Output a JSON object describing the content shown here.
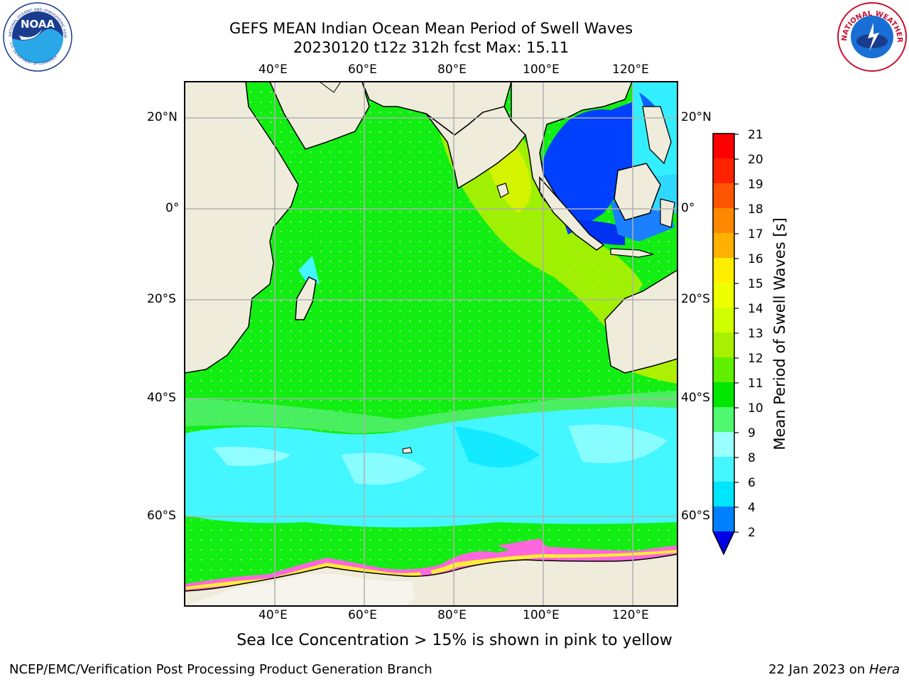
{
  "title": {
    "line1": "GEFS MEAN Indian Ocean Mean Period of Swell Waves",
    "line2": "20230120 t12z 312h fcst   Max: 15.11"
  },
  "logos": {
    "left": {
      "icon": "noaa-logo",
      "arc_text": "NATIONAL OCEANIC AND ATMOSPHERIC ADMINISTRATION",
      "bottom_text": "U.S. DEPARTMENT OF COMMERCE",
      "center_text": "NOAA"
    },
    "right": {
      "icon": "nws-logo",
      "arc_text": "NATIONAL WEATHER SERVICE"
    }
  },
  "map": {
    "lon_labels": [
      "40°E",
      "60°E",
      "80°E",
      "100°E",
      "120°E"
    ],
    "lat_labels": [
      "20°N",
      "0°",
      "20°S",
      "40°S",
      "60°S"
    ],
    "colors": {
      "land": "#efecdc",
      "grid": "#b0b0b0",
      "coast": "#000000"
    }
  },
  "colorbar": {
    "label": "Mean Period of Swell Waves [s]",
    "ticks": [
      "2",
      "4",
      "6",
      "8",
      "9",
      "10",
      "11",
      "12",
      "13",
      "14",
      "15",
      "16",
      "17",
      "18",
      "19",
      "20",
      "21"
    ],
    "colors": [
      "#0000e6",
      "#0080ff",
      "#00e6ff",
      "#40f8ff",
      "#99ffff",
      "#55ff80",
      "#00ee00",
      "#5cf000",
      "#a0f000",
      "#d0ff00",
      "#eeff00",
      "#ffee00",
      "#ffc000",
      "#ff9900",
      "#ff7000",
      "#ff4000",
      "#ff0000"
    ]
  },
  "note": "Sea Ice Concentration > 15% is shown in pink to yellow",
  "footer": {
    "left": "NCEP/EMC/Verification Post Processing Product Generation Branch",
    "right_prefix": "22 Jan 2023 on ",
    "right_machine": "Hera"
  }
}
